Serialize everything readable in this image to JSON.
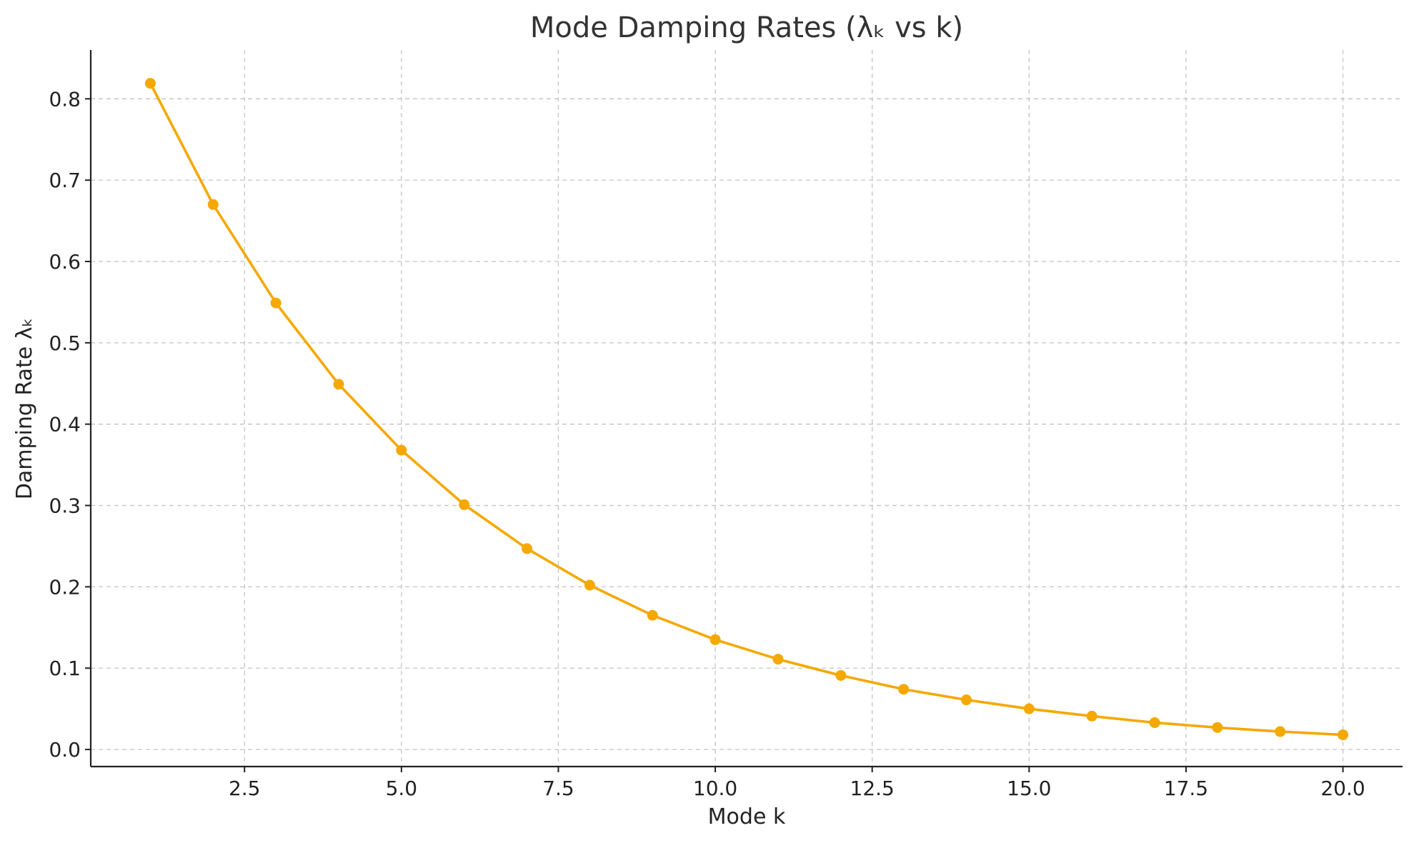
{
  "chart_data": {
    "type": "line",
    "title": "Mode Damping Rates (λₖ vs k)",
    "xlabel": "Mode k",
    "ylabel": "Damping Rate λₖ",
    "xlim": [
      0.05,
      20.95
    ],
    "ylim": [
      -0.021,
      0.86
    ],
    "xticks": [
      2.5,
      5.0,
      7.5,
      10.0,
      12.5,
      15.0,
      17.5,
      20.0
    ],
    "xtick_labels": [
      "2.5",
      "5.0",
      "7.5",
      "10.0",
      "12.5",
      "15.0",
      "17.5",
      "20.0"
    ],
    "yticks": [
      0.0,
      0.1,
      0.2,
      0.3,
      0.4,
      0.5,
      0.6,
      0.7,
      0.8
    ],
    "ytick_labels": [
      "0.0",
      "0.1",
      "0.2",
      "0.3",
      "0.4",
      "0.5",
      "0.6",
      "0.7",
      "0.8"
    ],
    "grid": true,
    "series": [
      {
        "color": "#f5a800",
        "marker": "circle",
        "x": [
          1,
          2,
          3,
          4,
          5,
          6,
          7,
          8,
          9,
          10,
          11,
          12,
          13,
          14,
          15,
          16,
          17,
          18,
          19,
          20
        ],
        "y": [
          0.819,
          0.67,
          0.549,
          0.449,
          0.368,
          0.301,
          0.247,
          0.202,
          0.165,
          0.135,
          0.111,
          0.091,
          0.074,
          0.061,
          0.05,
          0.041,
          0.033,
          0.027,
          0.022,
          0.018
        ]
      }
    ]
  }
}
